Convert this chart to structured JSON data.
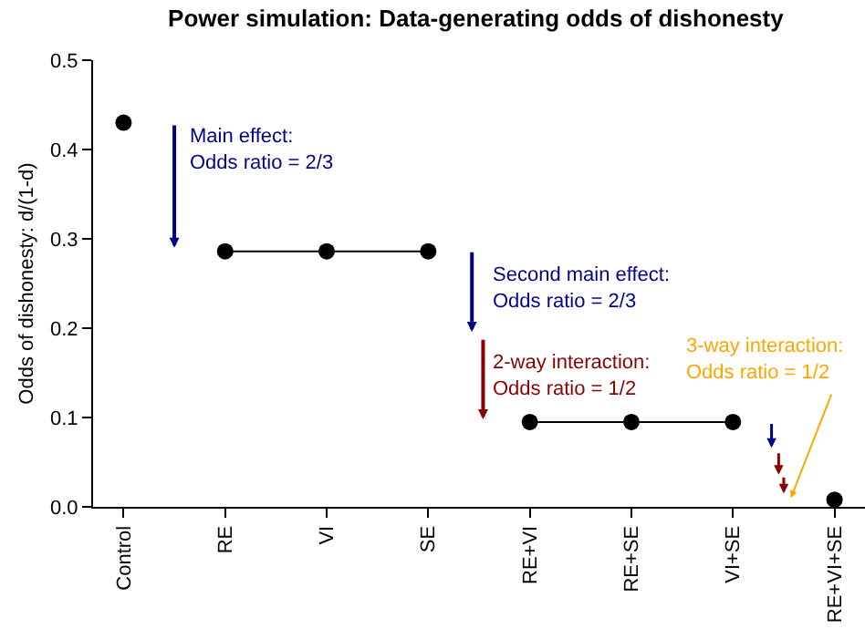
{
  "chart_data": {
    "type": "line",
    "title": "Power simulation: Data-generating odds of dishonesty",
    "ylabel": "Odds of dishonesty: d/(1-d)",
    "categories": [
      "Control",
      "RE",
      "VI",
      "SE",
      "RE+VI",
      "RE+SE",
      "VI+SE",
      "RE+VI+SE"
    ],
    "series": [
      {
        "type": "scatter",
        "color": "#000000",
        "values": [
          0.43,
          null,
          null,
          null,
          null,
          null,
          null,
          0.008
        ]
      },
      {
        "color": "#000000",
        "values": [
          null,
          0.286,
          0.286,
          0.286,
          null,
          null,
          null,
          null
        ]
      },
      {
        "color": "#000000",
        "values": [
          null,
          null,
          null,
          null,
          0.095,
          0.095,
          0.095,
          null
        ]
      }
    ],
    "ylim": [
      0,
      0.5
    ],
    "yticks": [
      {
        "value": 0,
        "label": "0.0"
      },
      0.1,
      0.2,
      0.3,
      0.4,
      0.5
    ],
    "marker": "circle",
    "line_style": "solid",
    "grid": false,
    "annotations": [
      "Main effect:\nOdds ratio = 2/3",
      "Second main effect:\nOdds ratio = 2/3",
      "2-way interaction:\nOdds ratio = 1/2",
      "3-way interaction:\nOdds ratio = 1/2"
    ]
  }
}
